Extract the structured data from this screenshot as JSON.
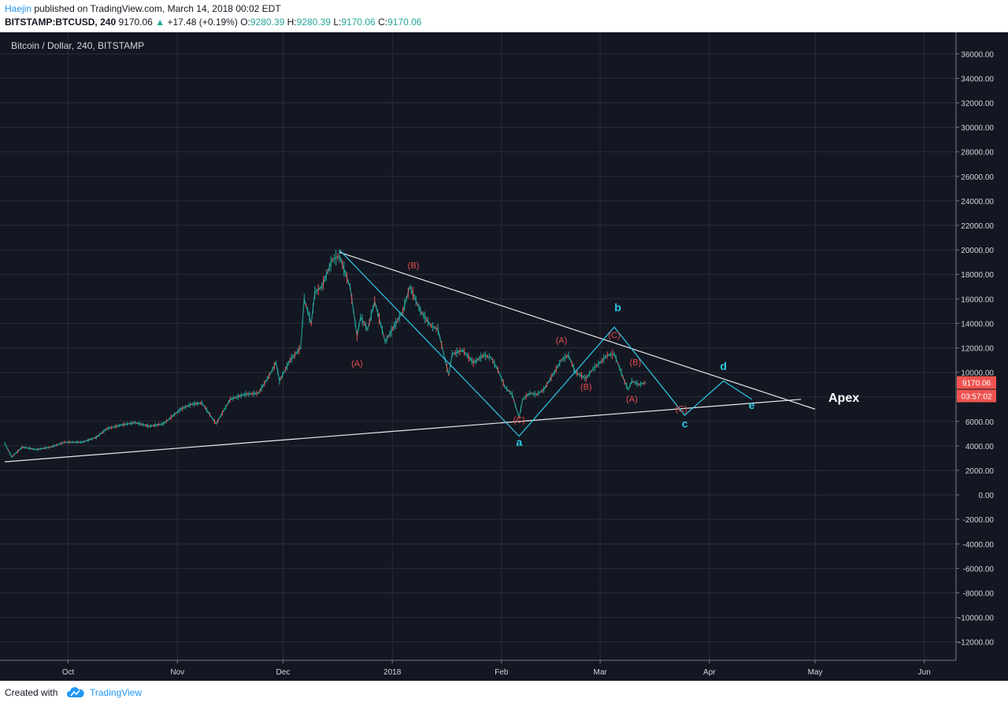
{
  "header": {
    "author": "Haejin",
    "published_text": "published on TradingView.com, March 14, 2018 00:02 EDT",
    "symbol": "BITSTAMP:BTCUSD, 240",
    "last": "9170.06",
    "change_arrow": "▲",
    "change": "+17.48 (+0.19%)",
    "o_label": "O:",
    "o": "9280.39",
    "h_label": "H:",
    "h": "9280.39",
    "l_label": "L:",
    "l": "9170.06",
    "c_label": "C:",
    "c": "9170.06"
  },
  "footer": {
    "created_with": "Created with",
    "brand": "TradingView"
  },
  "colors": {
    "background": "#131722",
    "up": "#26a69a",
    "down": "#ef5350",
    "wave_cyan": "#2ec9e6",
    "wave_red": "#e74c4c",
    "trendline": "#e8e8e8",
    "price_tag": "#ef5350"
  },
  "chart_data": {
    "type": "line",
    "title": "Bitcoin / Dollar, 240, BITSTAMP",
    "xlabel": "",
    "ylabel": "",
    "x_type": "date",
    "xlim": [
      "2017-09-13",
      "2018-06-10"
    ],
    "ylim": [
      -13500,
      37500
    ],
    "y_ticks": [
      36000,
      34000,
      32000,
      30000,
      28000,
      26000,
      24000,
      22000,
      20000,
      18000,
      16000,
      14000,
      12000,
      10000,
      8000,
      6000,
      4000,
      2000,
      0,
      -2000,
      -4000,
      -6000,
      -8000,
      -10000,
      -12000
    ],
    "y_tick_labels": [
      "36000.00",
      "34000.00",
      "32000.00",
      "30000.00",
      "28000.00",
      "26000.00",
      "24000.00",
      "22000.00",
      "20000.00",
      "18000.00",
      "16000.00",
      "14000.00",
      "12000.00",
      "10000.00",
      "8000.00",
      "6000.00",
      "4000.00",
      "2000.00",
      "0.00",
      "-2000.00",
      "-4000.00",
      "-6000.00",
      "-8000.00",
      "-10000.00",
      "-12000.00"
    ],
    "x_ticks": [
      {
        "date": "2017-10-01",
        "label": "Oct"
      },
      {
        "date": "2017-11-01",
        "label": "Nov"
      },
      {
        "date": "2017-12-01",
        "label": "Dec"
      },
      {
        "date": "2018-01-01",
        "label": "2018"
      },
      {
        "date": "2018-02-01",
        "label": "Feb"
      },
      {
        "date": "2018-03-01",
        "label": "Mar"
      },
      {
        "date": "2018-04-01",
        "label": "Apr"
      },
      {
        "date": "2018-05-01",
        "label": "May"
      },
      {
        "date": "2018-06-01",
        "label": "Jun"
      }
    ],
    "last_price": "9170.06",
    "countdown": "03:57:02",
    "price_series": {
      "name": "",
      "points": [
        [
          "2017-09-13",
          4200
        ],
        [
          "2017-09-15",
          3100
        ],
        [
          "2017-09-18",
          3900
        ],
        [
          "2017-09-22",
          3700
        ],
        [
          "2017-09-26",
          3900
        ],
        [
          "2017-09-30",
          4300
        ],
        [
          "2017-10-05",
          4300
        ],
        [
          "2017-10-09",
          4700
        ],
        [
          "2017-10-12",
          5400
        ],
        [
          "2017-10-16",
          5700
        ],
        [
          "2017-10-20",
          5900
        ],
        [
          "2017-10-24",
          5600
        ],
        [
          "2017-10-28",
          5800
        ],
        [
          "2017-11-02",
          7000
        ],
        [
          "2017-11-05",
          7400
        ],
        [
          "2017-11-08",
          7500
        ],
        [
          "2017-11-12",
          5800
        ],
        [
          "2017-11-16",
          7800
        ],
        [
          "2017-11-20",
          8200
        ],
        [
          "2017-11-24",
          8300
        ],
        [
          "2017-11-27",
          9700
        ],
        [
          "2017-11-29",
          10800
        ],
        [
          "2017-11-30",
          9300
        ],
        [
          "2017-12-03",
          11000
        ],
        [
          "2017-12-06",
          12000
        ],
        [
          "2017-12-07",
          16000
        ],
        [
          "2017-12-09",
          14000
        ],
        [
          "2017-12-10",
          16500
        ],
        [
          "2017-12-12",
          17000
        ],
        [
          "2017-12-15",
          19200
        ],
        [
          "2017-12-17",
          19500
        ],
        [
          "2017-12-20",
          17000
        ],
        [
          "2017-12-22",
          13000
        ],
        [
          "2017-12-23",
          14500
        ],
        [
          "2017-12-25",
          13500
        ],
        [
          "2017-12-27",
          15800
        ],
        [
          "2017-12-30",
          12500
        ],
        [
          "2018-01-02",
          14000
        ],
        [
          "2018-01-04",
          15000
        ],
        [
          "2018-01-06",
          17000
        ],
        [
          "2018-01-09",
          15000
        ],
        [
          "2018-01-12",
          13800
        ],
        [
          "2018-01-14",
          13500
        ],
        [
          "2018-01-16",
          11000
        ],
        [
          "2018-01-17",
          9800
        ],
        [
          "2018-01-18",
          11500
        ],
        [
          "2018-01-21",
          11800
        ],
        [
          "2018-01-24",
          10800
        ],
        [
          "2018-01-27",
          11400
        ],
        [
          "2018-01-29",
          11200
        ],
        [
          "2018-01-31",
          10200
        ],
        [
          "2018-02-02",
          8800
        ],
        [
          "2018-02-04",
          8200
        ],
        [
          "2018-02-06",
          6300
        ],
        [
          "2018-02-07",
          7800
        ],
        [
          "2018-02-09",
          8300
        ],
        [
          "2018-02-11",
          8200
        ],
        [
          "2018-02-13",
          8600
        ],
        [
          "2018-02-16",
          10000
        ],
        [
          "2018-02-18",
          11000
        ],
        [
          "2018-02-20",
          11400
        ],
        [
          "2018-02-22",
          10000
        ],
        [
          "2018-02-25",
          9500
        ],
        [
          "2018-02-27",
          10300
        ],
        [
          "2018-03-01",
          10800
        ],
        [
          "2018-03-03",
          11400
        ],
        [
          "2018-03-05",
          11500
        ],
        [
          "2018-03-07",
          10000
        ],
        [
          "2018-03-08",
          9200
        ],
        [
          "2018-03-09",
          8600
        ],
        [
          "2018-03-10",
          9300
        ],
        [
          "2018-03-12",
          9000
        ],
        [
          "2018-03-14",
          9170
        ]
      ]
    },
    "trendlines": [
      {
        "from": [
          "2017-12-17",
          19800
        ],
        "to": [
          "2018-05-01",
          7000
        ]
      },
      {
        "from": [
          "2017-09-13",
          2700
        ],
        "to": [
          "2018-04-27",
          7800
        ]
      }
    ],
    "wave_path_cyan": [
      [
        "2017-12-17",
        20000
      ],
      [
        "2018-02-06",
        4800
      ],
      [
        "2018-03-05",
        13700
      ],
      [
        "2018-03-25",
        6500
      ],
      [
        "2018-04-05",
        9300
      ],
      [
        "2018-04-13",
        7800
      ]
    ],
    "wave_labels_cyan": [
      {
        "text": "a",
        "at": [
          "2018-02-06",
          4000
        ]
      },
      {
        "text": "b",
        "at": [
          "2018-03-06",
          15000
        ]
      },
      {
        "text": "c",
        "at": [
          "2018-03-25",
          5500
        ]
      },
      {
        "text": "d",
        "at": [
          "2018-04-05",
          10200
        ]
      },
      {
        "text": "e",
        "at": [
          "2018-04-13",
          7000
        ]
      }
    ],
    "wave_labels_red": [
      {
        "text": "(B)",
        "at": [
          "2018-01-07",
          18500
        ]
      },
      {
        "text": "(A)",
        "at": [
          "2017-12-22",
          10500
        ]
      },
      {
        "text": "(C)",
        "at": [
          "2018-02-06",
          5900
        ]
      },
      {
        "text": "(A)",
        "at": [
          "2018-02-18",
          12400
        ]
      },
      {
        "text": "(B)",
        "at": [
          "2018-02-25",
          8600
        ]
      },
      {
        "text": "(C)",
        "at": [
          "2018-03-05",
          12800
        ]
      },
      {
        "text": "(B)",
        "at": [
          "2018-03-11",
          10600
        ]
      },
      {
        "text": "(A)",
        "at": [
          "2018-03-10",
          7600
        ]
      },
      {
        "text": "(C)",
        "at": [
          "2018-03-24",
          6800
        ]
      }
    ],
    "annotation": {
      "text": "Apex",
      "at": [
        "2018-05-03",
        7600
      ]
    }
  }
}
